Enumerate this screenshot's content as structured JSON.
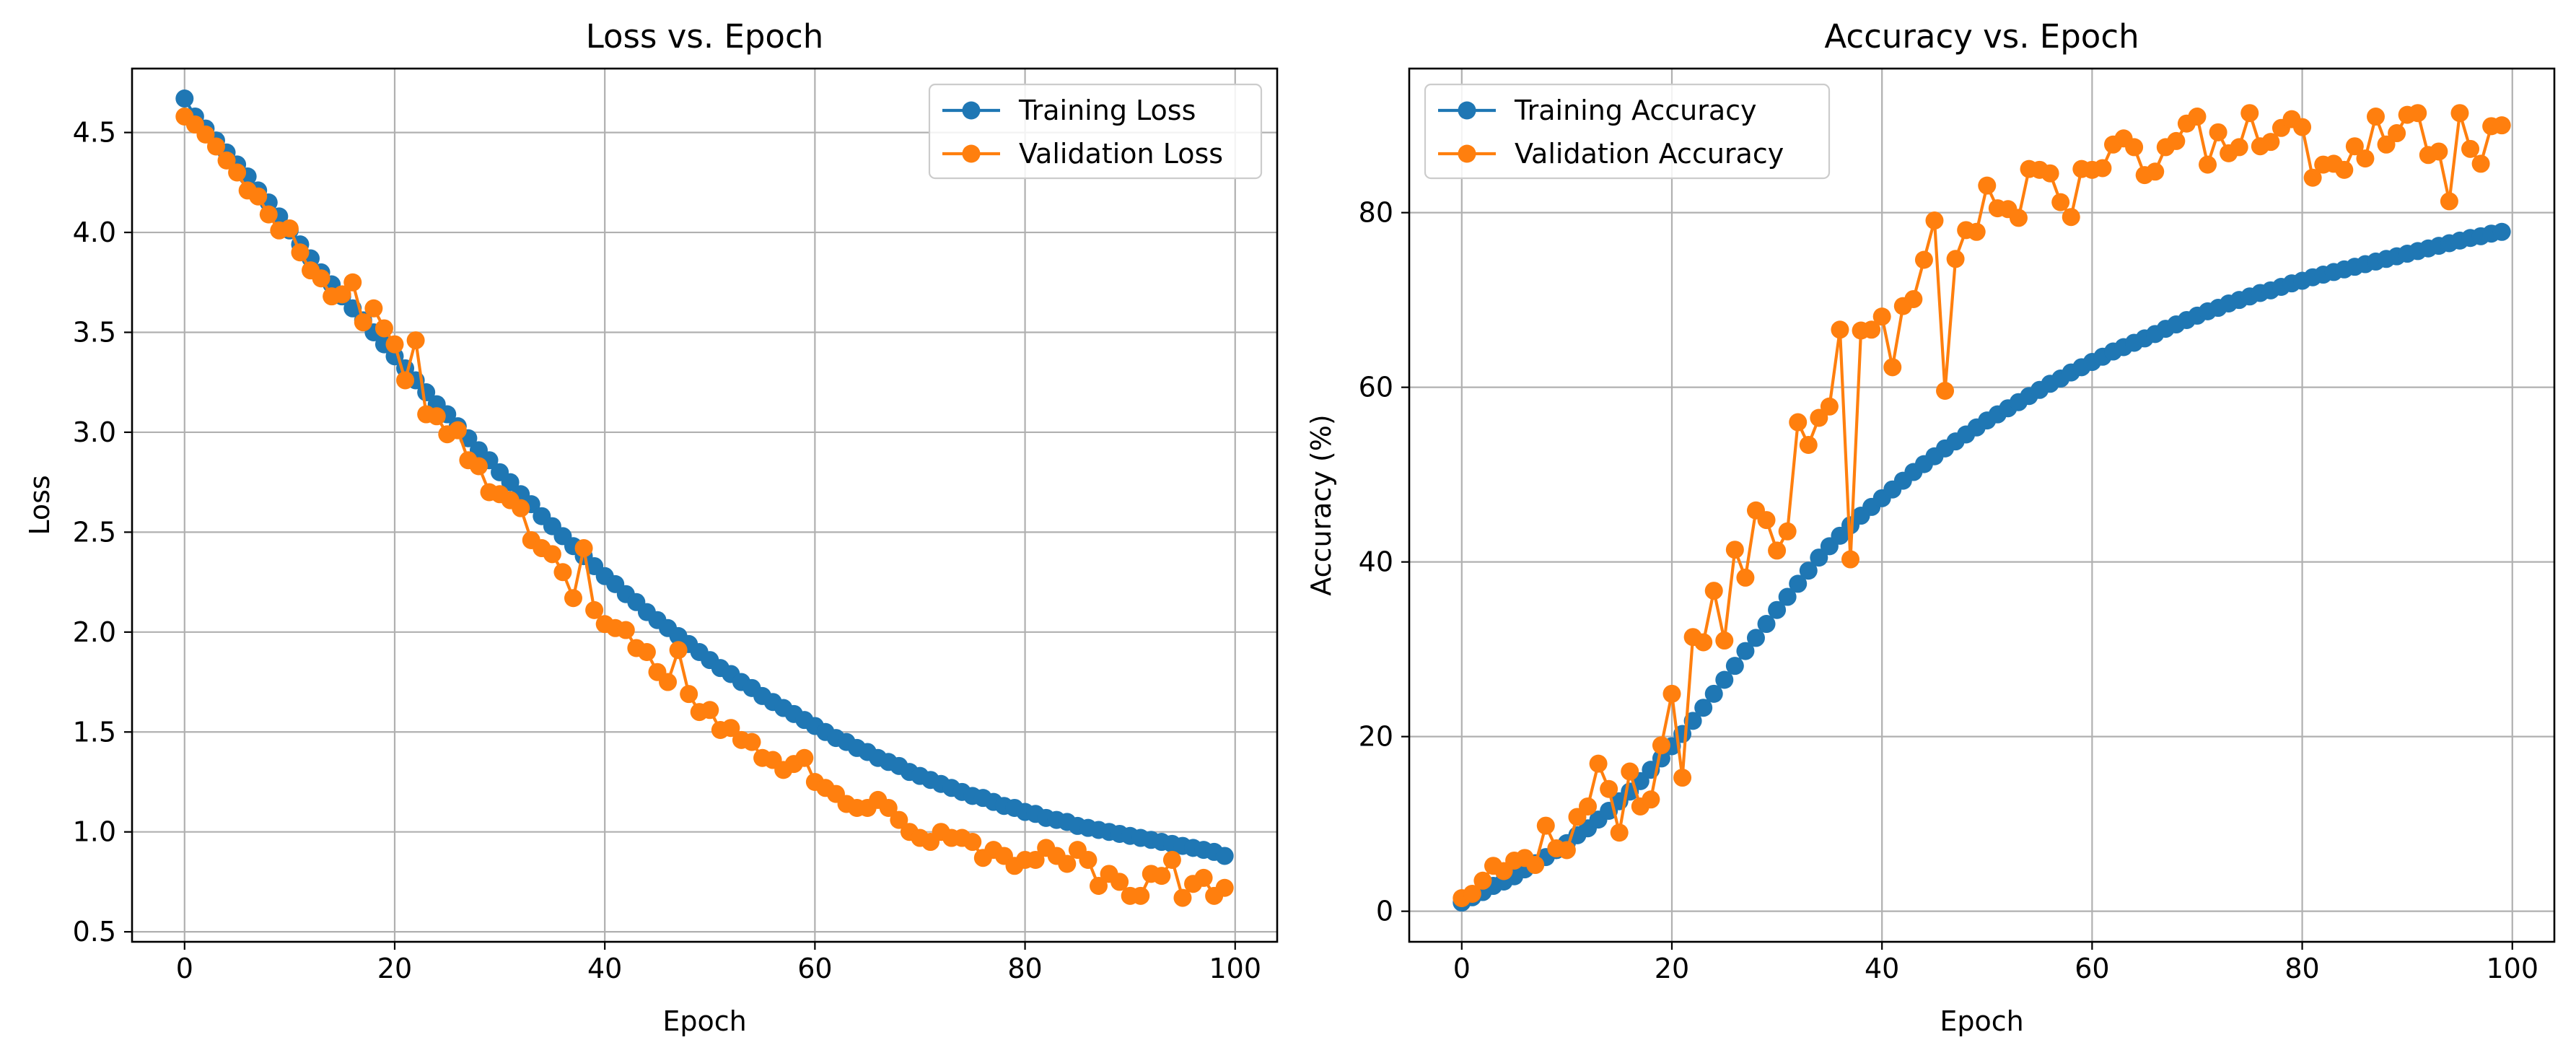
{
  "chart_data": [
    {
      "type": "line",
      "title": "Loss vs. Epoch",
      "xlabel": "Epoch",
      "ylabel": "Loss",
      "xlim": [
        -5,
        104
      ],
      "ylim": [
        0.45,
        4.82
      ],
      "xticks": [
        0,
        20,
        40,
        60,
        80,
        100
      ],
      "xtick_labels": [
        "0",
        "20",
        "40",
        "60",
        "80",
        "100"
      ],
      "yticks": [
        0.5,
        1.0,
        1.5,
        2.0,
        2.5,
        3.0,
        3.5,
        4.0,
        4.5
      ],
      "ytick_labels": [
        "0.5",
        "1.0",
        "1.5",
        "2.0",
        "2.5",
        "3.0",
        "3.5",
        "4.0",
        "4.5"
      ],
      "grid": true,
      "legend": "upper-right",
      "x": [
        0,
        1,
        2,
        3,
        4,
        5,
        6,
        7,
        8,
        9,
        10,
        11,
        12,
        13,
        14,
        15,
        16,
        17,
        18,
        19,
        20,
        21,
        22,
        23,
        24,
        25,
        26,
        27,
        28,
        29,
        30,
        31,
        32,
        33,
        34,
        35,
        36,
        37,
        38,
        39,
        40,
        41,
        42,
        43,
        44,
        45,
        46,
        47,
        48,
        49,
        50,
        51,
        52,
        53,
        54,
        55,
        56,
        57,
        58,
        59,
        60,
        61,
        62,
        63,
        64,
        65,
        66,
        67,
        68,
        69,
        70,
        71,
        72,
        73,
        74,
        75,
        76,
        77,
        78,
        79,
        80,
        81,
        82,
        83,
        84,
        85,
        86,
        87,
        88,
        89,
        90,
        91,
        92,
        93,
        94,
        95,
        96,
        97,
        98,
        99
      ],
      "series": [
        {
          "name": "Training Loss",
          "color": "#1f77b4",
          "values": [
            4.67,
            4.58,
            4.52,
            4.46,
            4.4,
            4.34,
            4.28,
            4.21,
            4.15,
            4.08,
            4.01,
            3.94,
            3.87,
            3.8,
            3.74,
            3.68,
            3.62,
            3.56,
            3.5,
            3.44,
            3.38,
            3.32,
            3.26,
            3.2,
            3.14,
            3.09,
            3.03,
            2.97,
            2.91,
            2.86,
            2.8,
            2.75,
            2.69,
            2.64,
            2.58,
            2.53,
            2.48,
            2.43,
            2.38,
            2.33,
            2.28,
            2.24,
            2.19,
            2.15,
            2.1,
            2.06,
            2.02,
            1.98,
            1.94,
            1.9,
            1.86,
            1.82,
            1.79,
            1.75,
            1.72,
            1.68,
            1.65,
            1.62,
            1.59,
            1.56,
            1.53,
            1.5,
            1.47,
            1.45,
            1.42,
            1.4,
            1.37,
            1.35,
            1.33,
            1.3,
            1.28,
            1.26,
            1.24,
            1.22,
            1.2,
            1.18,
            1.17,
            1.15,
            1.13,
            1.12,
            1.1,
            1.09,
            1.07,
            1.06,
            1.05,
            1.03,
            1.02,
            1.01,
            1.0,
            0.99,
            0.98,
            0.97,
            0.96,
            0.95,
            0.94,
            0.93,
            0.92,
            0.91,
            0.9,
            0.88
          ]
        },
        {
          "name": "Validation Loss",
          "color": "#ff7f0e",
          "values": [
            4.58,
            4.54,
            4.49,
            4.43,
            4.36,
            4.3,
            4.21,
            4.18,
            4.09,
            4.01,
            4.02,
            3.9,
            3.81,
            3.77,
            3.68,
            3.69,
            3.75,
            3.55,
            3.62,
            3.52,
            3.44,
            3.26,
            3.46,
            3.09,
            3.08,
            2.99,
            3.01,
            2.86,
            2.83,
            2.7,
            2.69,
            2.66,
            2.62,
            2.46,
            2.42,
            2.39,
            2.3,
            2.17,
            2.42,
            2.11,
            2.04,
            2.02,
            2.01,
            1.92,
            1.9,
            1.8,
            1.75,
            1.91,
            1.69,
            1.6,
            1.61,
            1.51,
            1.52,
            1.46,
            1.45,
            1.37,
            1.36,
            1.31,
            1.34,
            1.37,
            1.25,
            1.22,
            1.19,
            1.14,
            1.12,
            1.12,
            1.16,
            1.12,
            1.06,
            1.0,
            0.97,
            0.95,
            1.0,
            0.97,
            0.97,
            0.95,
            0.87,
            0.91,
            0.88,
            0.83,
            0.86,
            0.86,
            0.92,
            0.88,
            0.84,
            0.91,
            0.86,
            0.73,
            0.79,
            0.75,
            0.68,
            0.68,
            0.79,
            0.78,
            0.86,
            0.67,
            0.74,
            0.77,
            0.68,
            0.72
          ]
        }
      ]
    },
    {
      "type": "line",
      "title": "Accuracy vs. Epoch",
      "xlabel": "Epoch",
      "ylabel": "Accuracy (%)",
      "xlim": [
        -5,
        104
      ],
      "ylim": [
        -3.5,
        96.5
      ],
      "xticks": [
        0,
        20,
        40,
        60,
        80,
        100
      ],
      "xtick_labels": [
        "0",
        "20",
        "40",
        "60",
        "80",
        "100"
      ],
      "yticks": [
        0,
        20,
        40,
        60,
        80
      ],
      "ytick_labels": [
        "0",
        "20",
        "40",
        "60",
        "80"
      ],
      "grid": true,
      "legend": "upper-left",
      "x": [
        0,
        1,
        2,
        3,
        4,
        5,
        6,
        7,
        8,
        9,
        10,
        11,
        12,
        13,
        14,
        15,
        16,
        17,
        18,
        19,
        20,
        21,
        22,
        23,
        24,
        25,
        26,
        27,
        28,
        29,
        30,
        31,
        32,
        33,
        34,
        35,
        36,
        37,
        38,
        39,
        40,
        41,
        42,
        43,
        44,
        45,
        46,
        47,
        48,
        49,
        50,
        51,
        52,
        53,
        54,
        55,
        56,
        57,
        58,
        59,
        60,
        61,
        62,
        63,
        64,
        65,
        66,
        67,
        68,
        69,
        70,
        71,
        72,
        73,
        74,
        75,
        76,
        77,
        78,
        79,
        80,
        81,
        82,
        83,
        84,
        85,
        86,
        87,
        88,
        89,
        90,
        91,
        92,
        93,
        94,
        95,
        96,
        97,
        98,
        99
      ],
      "series": [
        {
          "name": "Training Accuracy",
          "color": "#1f77b4",
          "values": [
            1.0,
            1.6,
            2.2,
            2.9,
            3.4,
            4.0,
            4.8,
            5.5,
            6.2,
            7.0,
            7.8,
            8.7,
            9.5,
            10.5,
            11.5,
            12.6,
            13.7,
            14.9,
            16.2,
            17.5,
            18.9,
            20.3,
            21.8,
            23.3,
            24.9,
            26.5,
            28.1,
            29.8,
            31.3,
            32.9,
            34.5,
            36.0,
            37.5,
            39.0,
            40.5,
            41.8,
            43.0,
            44.2,
            45.3,
            46.3,
            47.3,
            48.3,
            49.3,
            50.3,
            51.2,
            52.1,
            53.0,
            53.8,
            54.6,
            55.4,
            56.2,
            56.9,
            57.6,
            58.3,
            59.0,
            59.7,
            60.4,
            61.0,
            61.7,
            62.3,
            62.9,
            63.5,
            64.1,
            64.6,
            65.1,
            65.6,
            66.1,
            66.7,
            67.2,
            67.7,
            68.2,
            68.7,
            69.1,
            69.6,
            70.0,
            70.4,
            70.8,
            71.1,
            71.5,
            71.9,
            72.2,
            72.6,
            72.9,
            73.2,
            73.5,
            73.8,
            74.1,
            74.4,
            74.7,
            75.0,
            75.3,
            75.6,
            75.9,
            76.2,
            76.5,
            76.8,
            77.1,
            77.3,
            77.6,
            77.8
          ]
        },
        {
          "name": "Validation Accuracy",
          "color": "#ff7f0e",
          "values": [
            1.5,
            2.0,
            3.5,
            5.2,
            4.6,
            5.8,
            6.1,
            5.3,
            9.8,
            7.2,
            7.0,
            10.8,
            12.0,
            16.9,
            14.0,
            9.0,
            16.0,
            12.0,
            12.8,
            19.0,
            24.9,
            15.3,
            31.4,
            30.8,
            36.7,
            31.0,
            41.4,
            38.2,
            45.9,
            44.8,
            41.3,
            43.5,
            56.0,
            53.4,
            56.5,
            57.8,
            66.6,
            40.3,
            66.5,
            66.6,
            68.1,
            62.3,
            69.3,
            70.1,
            74.6,
            79.1,
            59.6,
            74.7,
            78.0,
            77.8,
            83.1,
            80.5,
            80.4,
            79.4,
            85.0,
            84.9,
            84.5,
            81.2,
            79.5,
            85.0,
            84.9,
            85.1,
            87.8,
            88.5,
            87.5,
            84.3,
            84.7,
            87.5,
            88.2,
            90.2,
            91.0,
            85.5,
            89.2,
            86.8,
            87.5,
            91.4,
            87.6,
            88.1,
            89.7,
            90.7,
            89.8,
            84.0,
            85.5,
            85.6,
            84.9,
            87.6,
            86.2,
            91.0,
            87.8,
            89.1,
            91.2,
            91.4,
            86.6,
            87.0,
            81.3,
            91.4,
            87.3,
            85.6,
            89.9,
            90.0
          ]
        }
      ]
    }
  ]
}
